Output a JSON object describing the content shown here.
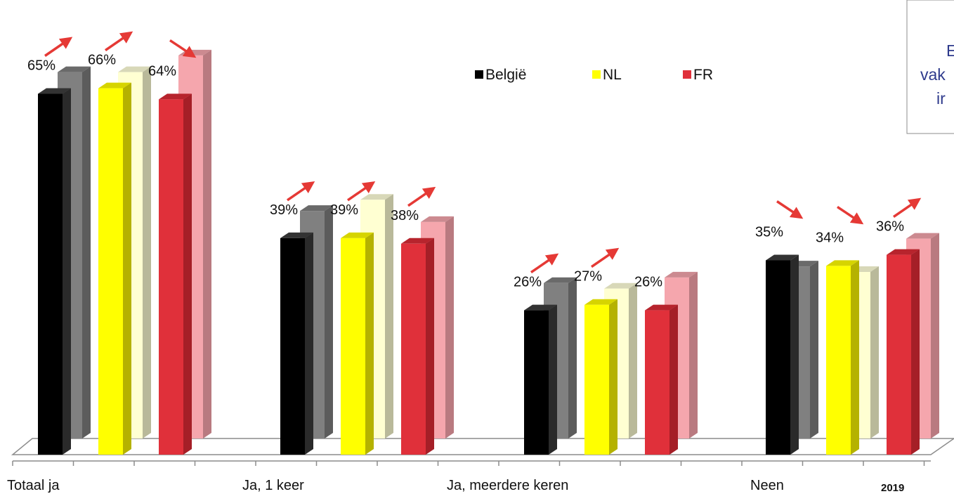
{
  "chart_data": {
    "type": "bar",
    "categories": [
      "Totaal ja",
      "Ja, 1 keer",
      "Ja, meerdere keren",
      "Neen"
    ],
    "series": [
      {
        "name": "België",
        "color": "#000000",
        "values": [
          65,
          39,
          26,
          35
        ]
      },
      {
        "name": "NL",
        "color": "#ffff00",
        "values": [
          66,
          39,
          27,
          34
        ]
      },
      {
        "name": "FR",
        "color": "#e0303a",
        "values": [
          64,
          38,
          26,
          36
        ]
      }
    ],
    "trend_arrows": [
      [
        "up",
        "up",
        "down"
      ],
      [
        "up",
        "up",
        "up"
      ],
      [
        "up",
        "up",
        null
      ],
      [
        "down",
        "down",
        "up"
      ]
    ],
    "year_label": "2019",
    "legend_position": "top",
    "grid": false,
    "ylim": [
      0,
      80
    ]
  },
  "textbox": {
    "lines": [
      "E",
      "vak",
      "ir"
    ]
  }
}
